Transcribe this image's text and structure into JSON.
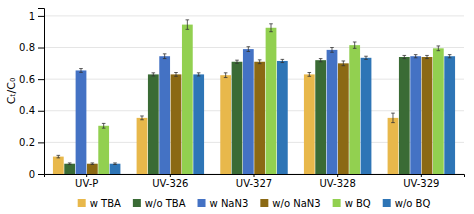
{
  "chart_data": {
    "type": "bar",
    "categories": [
      "UV-P",
      "UV-326",
      "UV-327",
      "UV-328",
      "UV-329"
    ],
    "series": [
      {
        "name": "w TBA",
        "color": "#E8B84B",
        "values": [
          0.11,
          0.355,
          0.625,
          0.63,
          0.355
        ],
        "errors": [
          0.008,
          0.012,
          0.015,
          0.012,
          0.03
        ]
      },
      {
        "name": "w/o TBA",
        "color": "#3A6B35",
        "values": [
          0.065,
          0.63,
          0.71,
          0.72,
          0.74
        ],
        "errors": [
          0.005,
          0.01,
          0.01,
          0.01,
          0.01
        ]
      },
      {
        "name": "w NaN3",
        "color": "#4472C4",
        "values": [
          0.655,
          0.745,
          0.79,
          0.785,
          0.745
        ],
        "errors": [
          0.012,
          0.015,
          0.015,
          0.015,
          0.01
        ]
      },
      {
        "name": "w/o NaN3",
        "color": "#8B6914",
        "values": [
          0.065,
          0.63,
          0.71,
          0.7,
          0.74
        ],
        "errors": [
          0.005,
          0.012,
          0.012,
          0.015,
          0.01
        ]
      },
      {
        "name": "w BQ",
        "color": "#92D050",
        "values": [
          0.305,
          0.945,
          0.925,
          0.815,
          0.795
        ],
        "errors": [
          0.015,
          0.03,
          0.025,
          0.02,
          0.015
        ]
      },
      {
        "name": "w/o BQ",
        "color": "#2E75B6",
        "values": [
          0.065,
          0.63,
          0.715,
          0.735,
          0.745
        ],
        "errors": [
          0.005,
          0.01,
          0.01,
          0.01,
          0.01
        ]
      }
    ],
    "ylabel": "Cₜ/C₀",
    "ylim": [
      0,
      1.05
    ],
    "yticks": [
      0,
      0.2,
      0.4,
      0.6,
      0.8,
      1
    ],
    "grid": true,
    "legend": "bottom"
  }
}
